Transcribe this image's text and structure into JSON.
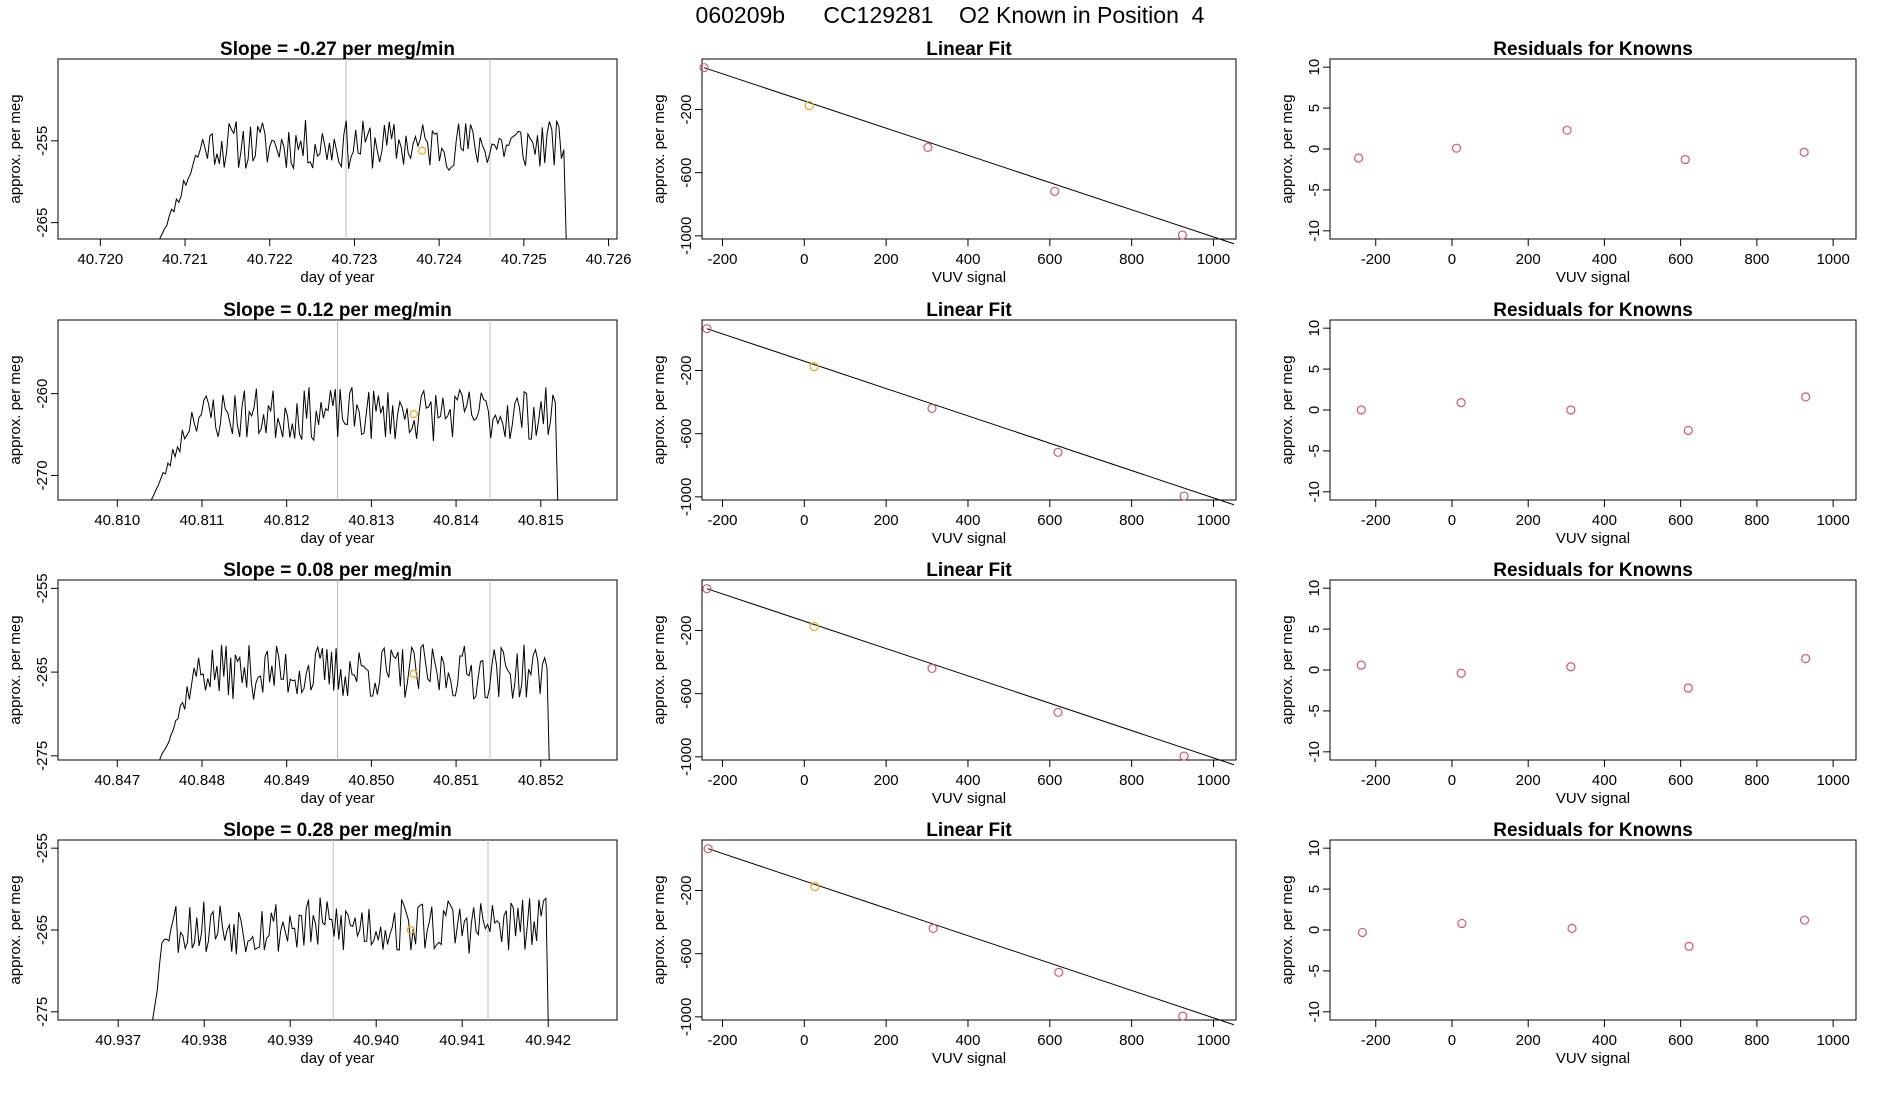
{
  "page_title": "060209b      CC129281    O2 Known in Position  4",
  "colors": {
    "line": "#000000",
    "frame": "#000000",
    "vline": "#bebebe",
    "point": "#df536b",
    "known_point": "#f5a623"
  },
  "chart_data": [
    {
      "type": "line",
      "title": "Slope =  -0.27  per meg/min",
      "xlabel": "day of year",
      "ylabel": "approx. per meg",
      "xlim": [
        40.7195,
        40.7261
      ],
      "ylim": [
        -267,
        -245
      ],
      "xticks": [
        40.72,
        40.721,
        40.722,
        40.723,
        40.724,
        40.725,
        40.726
      ],
      "xtick_labels": [
        "40.720",
        "40.721",
        "40.722",
        "40.723",
        "40.724",
        "40.725",
        "40.726"
      ],
      "yticks": [
        -255,
        -265
      ],
      "ytick_labels": [
        "-255",
        "-265"
      ],
      "vlines": [
        40.7229,
        40.7246
      ],
      "x_start": 40.7207,
      "x_end": 40.7255,
      "ramp_end": 40.7214,
      "level": -255.5,
      "amplitude": 2.8,
      "seed": 11,
      "highlight": {
        "x": 40.7238,
        "y": -256.2
      }
    },
    {
      "type": "scatter",
      "title": "Linear Fit",
      "xlabel": "VUV signal",
      "ylabel": "approx. per meg",
      "xlim": [
        -250,
        1055
      ],
      "ylim": [
        -1020,
        120
      ],
      "xticks": [
        -200,
        0,
        200,
        400,
        600,
        800,
        1000
      ],
      "xtick_labels": [
        "-200",
        "0",
        "200",
        "400",
        "600",
        "800",
        "1000"
      ],
      "yticks": [
        -200,
        -600,
        -1000
      ],
      "ytick_labels": [
        "-200",
        "-600",
        "-1000"
      ],
      "points": [
        [
          -245,
          65
        ],
        [
          12,
          -175
        ],
        [
          302,
          -440
        ],
        [
          612,
          -718
        ],
        [
          924,
          -995
        ]
      ],
      "fit_line": [
        [
          -245,
          65
        ],
        [
          1050,
          -1050
        ]
      ],
      "highlight_index": 1
    },
    {
      "type": "scatter",
      "title": "Residuals for Knowns",
      "xlabel": "VUV signal",
      "ylabel": "approx. per meg",
      "xlim": [
        -320,
        1060
      ],
      "ylim": [
        -11,
        11
      ],
      "xticks": [
        -200,
        0,
        200,
        400,
        600,
        800,
        1000
      ],
      "xtick_labels": [
        "-200",
        "0",
        "200",
        "400",
        "600",
        "800",
        "1000"
      ],
      "yticks": [
        10,
        5,
        0,
        -5,
        -10
      ],
      "ytick_labels": [
        "10",
        "5",
        "0",
        "-5",
        "-10"
      ],
      "points": [
        [
          -245,
          -1.1
        ],
        [
          12,
          0.1
        ],
        [
          302,
          2.3
        ],
        [
          612,
          -1.3
        ],
        [
          924,
          -0.4
        ]
      ]
    },
    {
      "type": "line",
      "title": "Slope =  0.12  per meg/min",
      "xlabel": "day of year",
      "ylabel": "approx. per meg",
      "xlim": [
        40.8093,
        40.8159
      ],
      "ylim": [
        -273,
        -251
      ],
      "xticks": [
        40.81,
        40.811,
        40.812,
        40.813,
        40.814,
        40.815
      ],
      "xtick_labels": [
        "40.810",
        "40.811",
        "40.812",
        "40.813",
        "40.814",
        "40.815"
      ],
      "yticks": [
        -260,
        -270
      ],
      "ytick_labels": [
        "-260",
        "-270"
      ],
      "vlines": [
        40.8126,
        40.8144
      ],
      "x_start": 40.8104,
      "x_end": 40.8152,
      "ramp_end": 40.8111,
      "level": -262.5,
      "amplitude": 3.0,
      "seed": 23,
      "highlight": {
        "x": 40.8135,
        "y": -262.5
      }
    },
    {
      "type": "scatter",
      "title": "Linear Fit",
      "xlabel": "VUV signal",
      "ylabel": "approx. per meg",
      "xlim": [
        -250,
        1055
      ],
      "ylim": [
        -1020,
        120
      ],
      "xticks": [
        -200,
        0,
        200,
        400,
        600,
        800,
        1000
      ],
      "xtick_labels": [
        "-200",
        "0",
        "200",
        "400",
        "600",
        "800",
        "1000"
      ],
      "yticks": [
        -200,
        -600,
        -1000
      ],
      "ytick_labels": [
        "-200",
        "-600",
        "-1000"
      ],
      "points": [
        [
          -238,
          65
        ],
        [
          24,
          -175
        ],
        [
          312,
          -440
        ],
        [
          620,
          -718
        ],
        [
          928,
          -995
        ]
      ],
      "fit_line": [
        [
          -238,
          65
        ],
        [
          1050,
          -1050
        ]
      ],
      "highlight_index": 1
    },
    {
      "type": "scatter",
      "title": "Residuals for Knowns",
      "xlabel": "VUV signal",
      "ylabel": "approx. per meg",
      "xlim": [
        -320,
        1060
      ],
      "ylim": [
        -11,
        11
      ],
      "xticks": [
        -200,
        0,
        200,
        400,
        600,
        800,
        1000
      ],
      "xtick_labels": [
        "-200",
        "0",
        "200",
        "400",
        "600",
        "800",
        "1000"
      ],
      "yticks": [
        10,
        5,
        0,
        -5,
        -10
      ],
      "ytick_labels": [
        "10",
        "5",
        "0",
        "-5",
        "-10"
      ],
      "points": [
        [
          -238,
          0.0
        ],
        [
          24,
          0.9
        ],
        [
          312,
          0.0
        ],
        [
          620,
          -2.5
        ],
        [
          928,
          1.6
        ]
      ]
    },
    {
      "type": "line",
      "title": "Slope =  0.08  per meg/min",
      "xlabel": "day of year",
      "ylabel": "approx. per meg",
      "xlim": [
        40.8463,
        40.8529
      ],
      "ylim": [
        -275.5,
        -254
      ],
      "xticks": [
        40.847,
        40.848,
        40.849,
        40.85,
        40.851,
        40.852
      ],
      "xtick_labels": [
        "40.847",
        "40.848",
        "40.849",
        "40.850",
        "40.851",
        "40.852"
      ],
      "yticks": [
        -255,
        -265,
        -275
      ],
      "ytick_labels": [
        "-255",
        "-265",
        "-275"
      ],
      "vlines": [
        40.8496,
        40.8514
      ],
      "x_start": 40.8475,
      "x_end": 40.8521,
      "ramp_end": 40.8481,
      "level": -265.0,
      "amplitude": 3.0,
      "seed": 37,
      "highlight": {
        "x": 40.8505,
        "y": -265.2
      }
    },
    {
      "type": "scatter",
      "title": "Linear Fit",
      "xlabel": "VUV signal",
      "ylabel": "approx. per meg",
      "xlim": [
        -250,
        1055
      ],
      "ylim": [
        -1020,
        120
      ],
      "xticks": [
        -200,
        0,
        200,
        400,
        600,
        800,
        1000
      ],
      "xtick_labels": [
        "-200",
        "0",
        "200",
        "400",
        "600",
        "800",
        "1000"
      ],
      "yticks": [
        -200,
        -600,
        -1000
      ],
      "ytick_labels": [
        "-200",
        "-600",
        "-1000"
      ],
      "points": [
        [
          -238,
          65
        ],
        [
          24,
          -175
        ],
        [
          312,
          -440
        ],
        [
          620,
          -718
        ],
        [
          928,
          -995
        ]
      ],
      "fit_line": [
        [
          -238,
          65
        ],
        [
          1050,
          -1050
        ]
      ],
      "highlight_index": 1
    },
    {
      "type": "scatter",
      "title": "Residuals for Knowns",
      "xlabel": "VUV signal",
      "ylabel": "approx. per meg",
      "xlim": [
        -320,
        1060
      ],
      "ylim": [
        -11,
        11
      ],
      "xticks": [
        -200,
        0,
        200,
        400,
        600,
        800,
        1000
      ],
      "xtick_labels": [
        "-200",
        "0",
        "200",
        "400",
        "600",
        "800",
        "1000"
      ],
      "yticks": [
        10,
        5,
        0,
        -5,
        -10
      ],
      "ytick_labels": [
        "10",
        "5",
        "0",
        "-5",
        "-10"
      ],
      "points": [
        [
          -238,
          0.6
        ],
        [
          24,
          -0.4
        ],
        [
          312,
          0.4
        ],
        [
          620,
          -2.2
        ],
        [
          928,
          1.4
        ]
      ]
    },
    {
      "type": "line",
      "title": "Slope =  0.28  per meg/min",
      "xlabel": "day of year",
      "ylabel": "approx. per meg",
      "xlim": [
        40.9363,
        40.9428
      ],
      "ylim": [
        -276,
        -254
      ],
      "xticks": [
        40.937,
        40.938,
        40.939,
        40.94,
        40.941,
        40.942
      ],
      "xtick_labels": [
        "40.937",
        "40.938",
        "40.939",
        "40.940",
        "40.941",
        "40.942"
      ],
      "yticks": [
        -255,
        -265,
        -275
      ],
      "ytick_labels": [
        "-255",
        "-265",
        "-275"
      ],
      "vlines": [
        40.9395,
        40.9413
      ],
      "x_start": 40.9374,
      "x_end": 40.942,
      "ramp_end": 40.9376,
      "level": -264.5,
      "amplitude": 3.2,
      "seed": 53,
      "highlight": {
        "x": 40.9404,
        "y": -265.0
      }
    },
    {
      "type": "scatter",
      "title": "Linear Fit",
      "xlabel": "VUV signal",
      "ylabel": "approx. per meg",
      "xlim": [
        -250,
        1055
      ],
      "ylim": [
        -1020,
        120
      ],
      "xticks": [
        -200,
        0,
        200,
        400,
        600,
        800,
        1000
      ],
      "xtick_labels": [
        "-200",
        "0",
        "200",
        "400",
        "600",
        "800",
        "1000"
      ],
      "yticks": [
        -200,
        -600,
        -1000
      ],
      "ytick_labels": [
        "-200",
        "-600",
        "-1000"
      ],
      "points": [
        [
          -235,
          65
        ],
        [
          26,
          -175
        ],
        [
          315,
          -440
        ],
        [
          622,
          -718
        ],
        [
          925,
          -995
        ]
      ],
      "fit_line": [
        [
          -235,
          65
        ],
        [
          1050,
          -1050
        ]
      ],
      "highlight_index": 1
    },
    {
      "type": "scatter",
      "title": "Residuals for Knowns",
      "xlabel": "VUV signal",
      "ylabel": "approx. per meg",
      "xlim": [
        -320,
        1060
      ],
      "ylim": [
        -11,
        11
      ],
      "xticks": [
        -200,
        0,
        200,
        400,
        600,
        800,
        1000
      ],
      "xtick_labels": [
        "-200",
        "0",
        "200",
        "400",
        "600",
        "800",
        "1000"
      ],
      "yticks": [
        10,
        5,
        0,
        -5,
        -10
      ],
      "ytick_labels": [
        "10",
        "5",
        "0",
        "-5",
        "-10"
      ],
      "points": [
        [
          -235,
          -0.3
        ],
        [
          26,
          0.8
        ],
        [
          315,
          0.2
        ],
        [
          622,
          -2.0
        ],
        [
          925,
          1.2
        ]
      ]
    }
  ]
}
